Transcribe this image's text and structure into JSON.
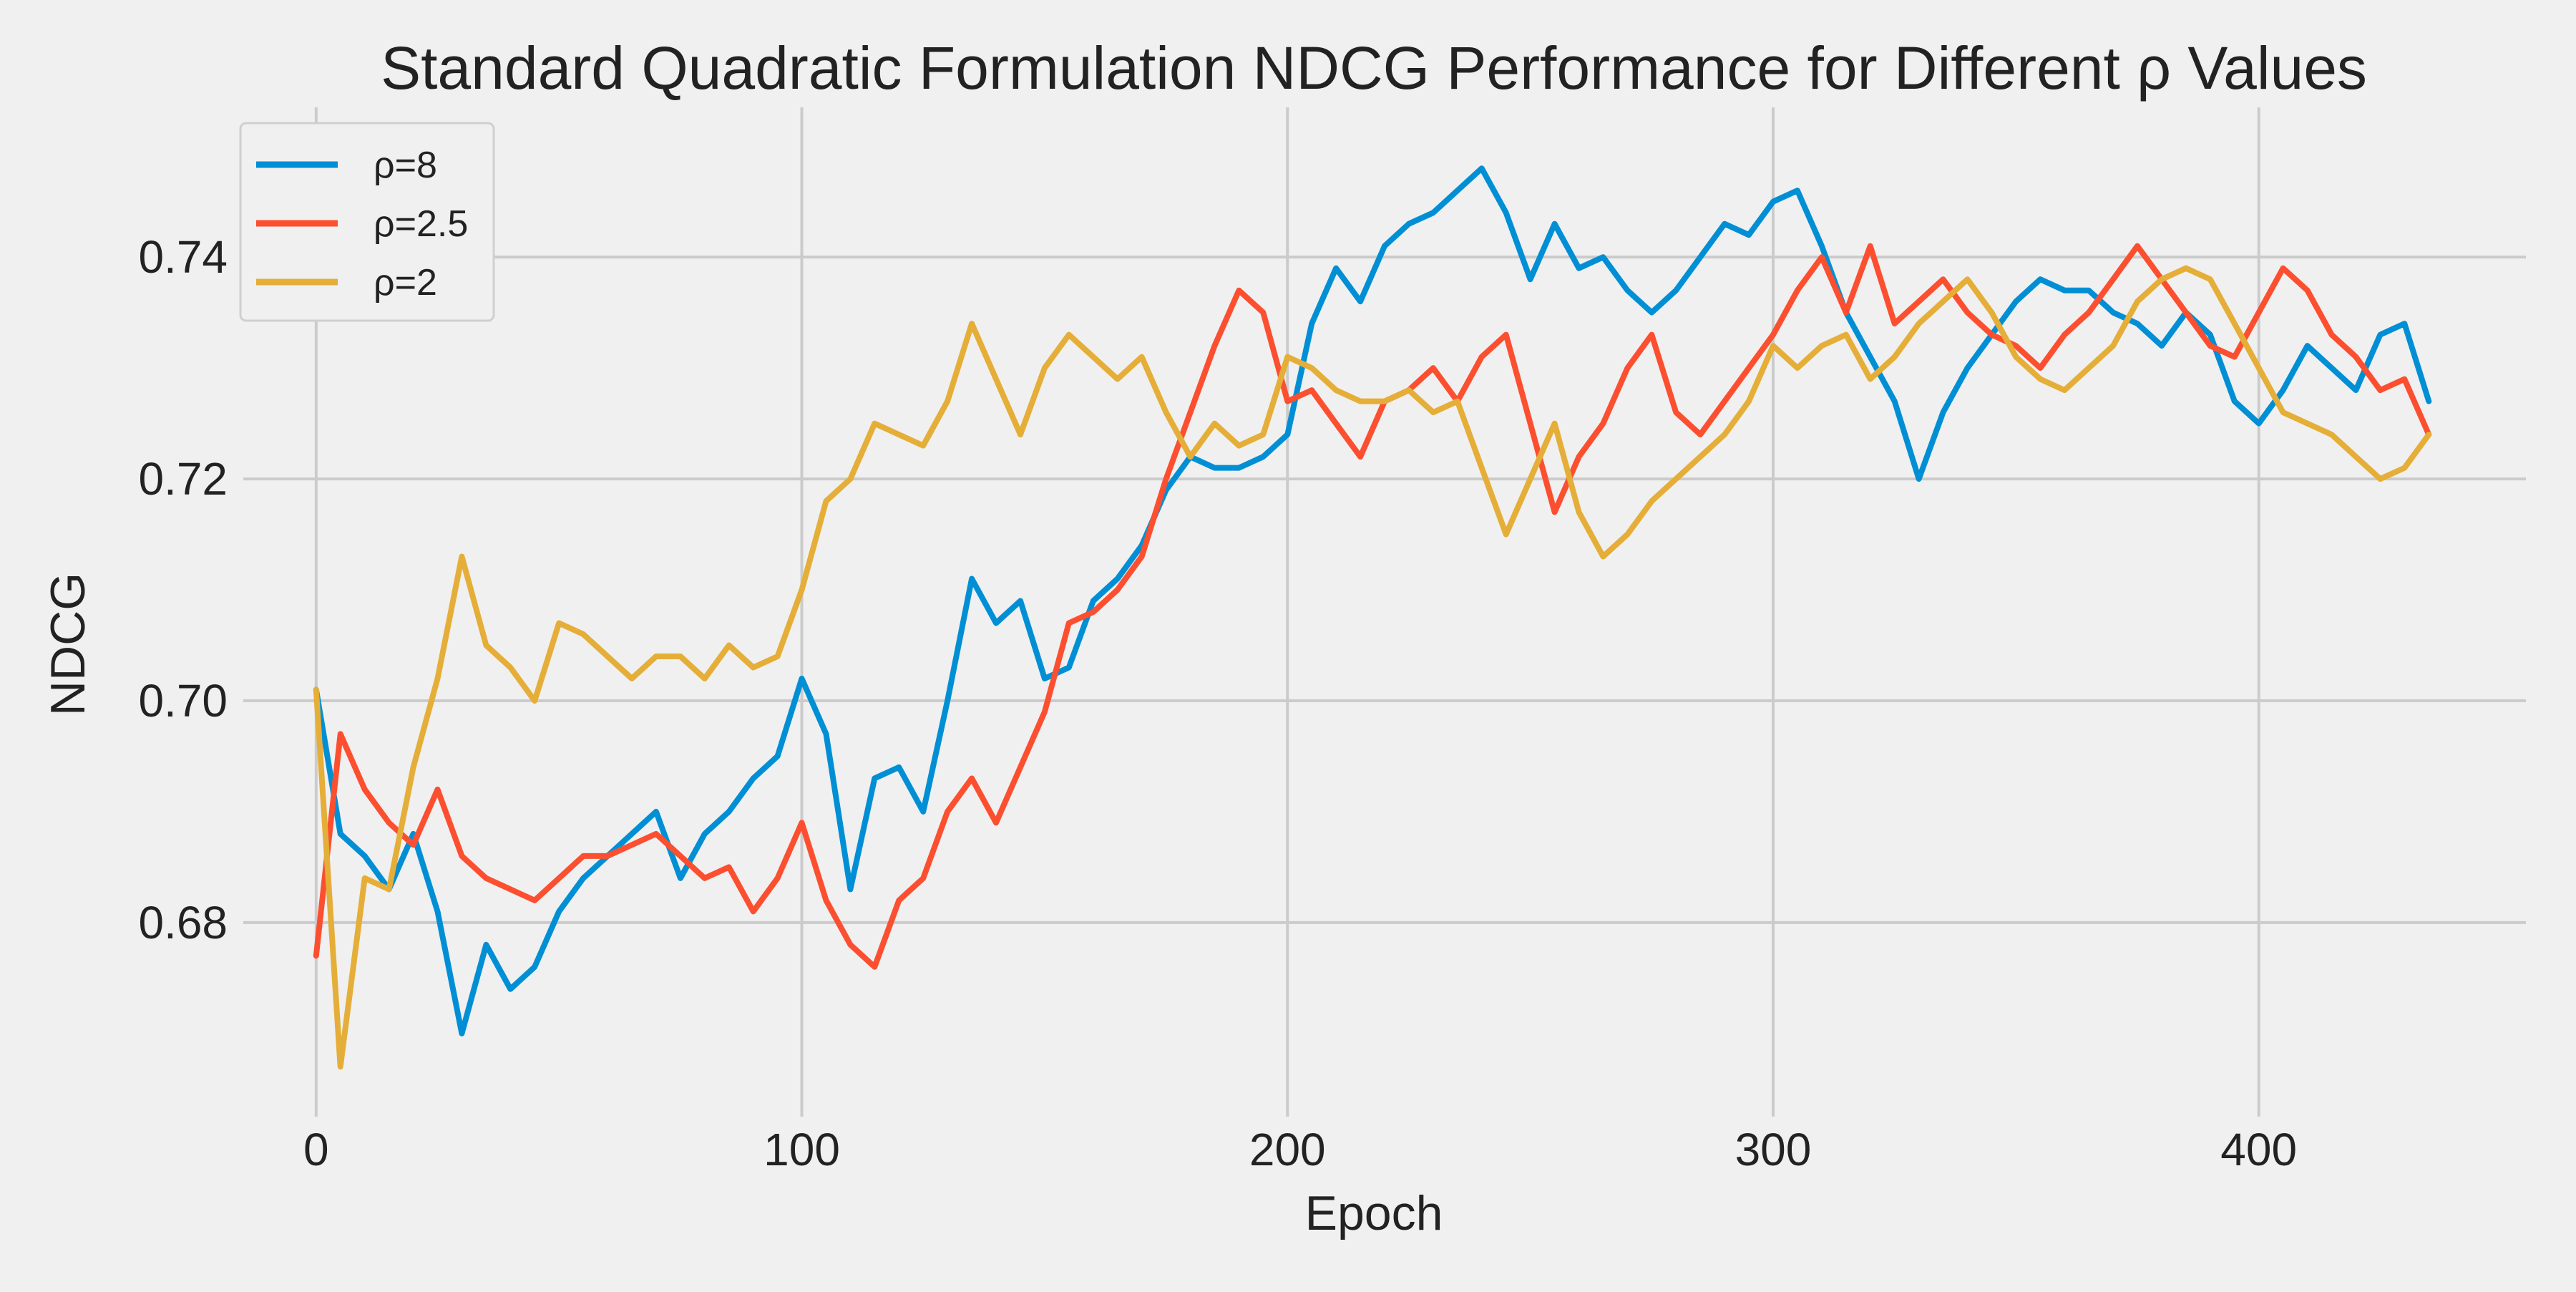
{
  "chart_data": {
    "type": "line",
    "title": "Standard Quadratic Formulation NDCG Performance for Different ρ Values",
    "xlabel": "Epoch",
    "ylabel": "NDCG",
    "xlim": [
      -15,
      455
    ],
    "ylim": [
      0.6625,
      0.7535
    ],
    "xticks": [
      0,
      100,
      200,
      300,
      400
    ],
    "yticks": [
      0.68,
      0.7,
      0.72,
      0.74
    ],
    "ytick_labels": [
      "0.68",
      "0.70",
      "0.72",
      "0.74"
    ],
    "grid": true,
    "legend_position": "top-left",
    "series": [
      {
        "name": "ρ=8",
        "color": "#008fd5",
        "x": [
          0,
          5,
          10,
          15,
          20,
          25,
          30,
          35,
          40,
          45,
          50,
          55,
          60,
          65,
          70,
          75,
          80,
          85,
          90,
          95,
          100,
          105,
          110,
          115,
          120,
          125,
          130,
          135,
          140,
          145,
          150,
          155,
          160,
          165,
          170,
          175,
          180,
          185,
          190,
          195,
          200,
          205,
          210,
          215,
          220,
          225,
          230,
          235,
          240,
          245,
          250,
          255,
          260,
          265,
          270,
          275,
          280,
          285,
          290,
          295,
          300,
          305,
          310,
          315,
          320,
          325,
          330,
          335,
          340,
          345,
          350,
          355,
          360,
          365,
          370,
          375,
          380,
          385,
          390,
          395,
          400,
          405,
          410,
          415,
          420,
          425,
          430,
          435
        ],
        "values": [
          0.701,
          0.688,
          0.686,
          0.683,
          0.688,
          0.681,
          0.67,
          0.678,
          0.674,
          0.676,
          0.681,
          0.684,
          0.686,
          0.688,
          0.69,
          0.684,
          0.688,
          0.69,
          0.693,
          0.695,
          0.702,
          0.697,
          0.683,
          0.693,
          0.694,
          0.69,
          0.7,
          0.711,
          0.707,
          0.709,
          0.702,
          0.703,
          0.709,
          0.711,
          0.714,
          0.719,
          0.722,
          0.721,
          0.721,
          0.722,
          0.724,
          0.734,
          0.739,
          0.736,
          0.741,
          0.743,
          0.744,
          0.746,
          0.748,
          0.744,
          0.738,
          0.743,
          0.739,
          0.74,
          0.737,
          0.735,
          0.737,
          0.74,
          0.743,
          0.742,
          0.745,
          0.746,
          0.741,
          0.735,
          0.731,
          0.727,
          0.72,
          0.726,
          0.73,
          0.733,
          0.736,
          0.738,
          0.737,
          0.737,
          0.735,
          0.734,
          0.732,
          0.735,
          0.733,
          0.727,
          0.725,
          0.728,
          0.732,
          0.73,
          0.728,
          0.733,
          0.734,
          0.727
        ]
      },
      {
        "name": "ρ=2.5",
        "color": "#fc4f30",
        "x": [
          0,
          5,
          10,
          15,
          20,
          25,
          30,
          35,
          40,
          45,
          50,
          55,
          60,
          65,
          70,
          75,
          80,
          85,
          90,
          95,
          100,
          105,
          110,
          115,
          120,
          125,
          130,
          135,
          140,
          145,
          150,
          155,
          160,
          165,
          170,
          175,
          180,
          185,
          190,
          195,
          200,
          205,
          210,
          215,
          220,
          225,
          230,
          235,
          240,
          245,
          250,
          255,
          260,
          265,
          270,
          275,
          280,
          285,
          290,
          295,
          300,
          305,
          310,
          315,
          320,
          325,
          330,
          335,
          340,
          345,
          350,
          355,
          360,
          365,
          370,
          375,
          380,
          385,
          390,
          395,
          400,
          405,
          410,
          415,
          420,
          425,
          430,
          435
        ],
        "values": [
          0.677,
          0.697,
          0.692,
          0.689,
          0.687,
          0.692,
          0.686,
          0.684,
          0.683,
          0.682,
          0.684,
          0.686,
          0.686,
          0.687,
          0.688,
          0.686,
          0.684,
          0.685,
          0.681,
          0.684,
          0.689,
          0.682,
          0.678,
          0.676,
          0.682,
          0.684,
          0.69,
          0.693,
          0.689,
          0.694,
          0.699,
          0.707,
          0.708,
          0.71,
          0.713,
          0.72,
          0.726,
          0.732,
          0.737,
          0.735,
          0.727,
          0.728,
          0.725,
          0.722,
          0.727,
          0.728,
          0.73,
          0.727,
          0.731,
          0.733,
          0.725,
          0.717,
          0.722,
          0.725,
          0.73,
          0.733,
          0.726,
          0.724,
          0.727,
          0.73,
          0.733,
          0.737,
          0.74,
          0.735,
          0.741,
          0.734,
          0.736,
          0.738,
          0.735,
          0.733,
          0.732,
          0.73,
          0.733,
          0.735,
          0.738,
          0.741,
          0.738,
          0.735,
          0.732,
          0.731,
          0.735,
          0.739,
          0.737,
          0.733,
          0.731,
          0.728,
          0.729,
          0.724
        ]
      },
      {
        "name": "ρ=2",
        "color": "#e5ae38",
        "x": [
          0,
          5,
          10,
          15,
          20,
          25,
          30,
          35,
          40,
          45,
          50,
          55,
          60,
          65,
          70,
          75,
          80,
          85,
          90,
          95,
          100,
          105,
          110,
          115,
          120,
          125,
          130,
          135,
          140,
          145,
          150,
          155,
          160,
          165,
          170,
          175,
          180,
          185,
          190,
          195,
          200,
          205,
          210,
          215,
          220,
          225,
          230,
          235,
          240,
          245,
          250,
          255,
          260,
          265,
          270,
          275,
          280,
          285,
          290,
          295,
          300,
          305,
          310,
          315,
          320,
          325,
          330,
          335,
          340,
          345,
          350,
          355,
          360,
          365,
          370,
          375,
          380,
          385,
          390,
          395,
          400,
          405,
          410,
          415,
          420,
          425,
          430,
          435
        ],
        "values": [
          0.701,
          0.667,
          0.684,
          0.683,
          0.694,
          0.702,
          0.713,
          0.705,
          0.703,
          0.7,
          0.707,
          0.706,
          0.704,
          0.702,
          0.704,
          0.704,
          0.702,
          0.705,
          0.703,
          0.704,
          0.71,
          0.718,
          0.72,
          0.725,
          0.724,
          0.723,
          0.727,
          0.734,
          0.729,
          0.724,
          0.73,
          0.733,
          0.731,
          0.729,
          0.731,
          0.726,
          0.722,
          0.725,
          0.723,
          0.724,
          0.731,
          0.73,
          0.728,
          0.727,
          0.727,
          0.728,
          0.726,
          0.727,
          0.721,
          0.715,
          0.72,
          0.725,
          0.717,
          0.713,
          0.715,
          0.718,
          0.72,
          0.722,
          0.724,
          0.727,
          0.732,
          0.73,
          0.732,
          0.733,
          0.729,
          0.731,
          0.734,
          0.736,
          0.738,
          0.735,
          0.731,
          0.729,
          0.728,
          0.73,
          0.732,
          0.736,
          0.738,
          0.739,
          0.738,
          0.734,
          0.73,
          0.726,
          0.725,
          0.724,
          0.722,
          0.72,
          0.721,
          0.724
        ]
      }
    ]
  }
}
